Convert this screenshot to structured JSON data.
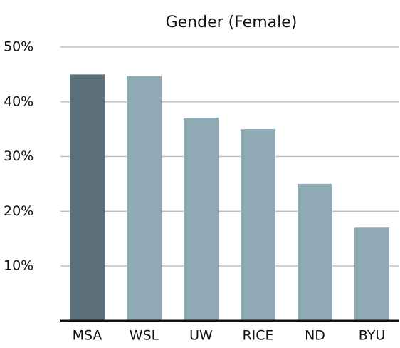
{
  "chart_data": {
    "type": "bar",
    "title": "Gender (Female)",
    "categories": [
      "MSA",
      "WSL",
      "UW",
      "RICE",
      "ND",
      "BYU"
    ],
    "values": [
      45,
      44.7,
      37.1,
      35,
      25,
      17
    ],
    "colors": [
      "#5b707b",
      "#90aab5",
      "#90aab5",
      "#90aab5",
      "#90aab5",
      "#90aab5"
    ],
    "ylim": [
      0,
      50
    ],
    "yticks": [
      {
        "value": 10,
        "label": "10%"
      },
      {
        "value": 20,
        "label": "20%"
      },
      {
        "value": 30,
        "label": "30%"
      },
      {
        "value": 40,
        "label": "40%"
      },
      {
        "value": 50,
        "label": "50%"
      }
    ],
    "grid": true
  }
}
